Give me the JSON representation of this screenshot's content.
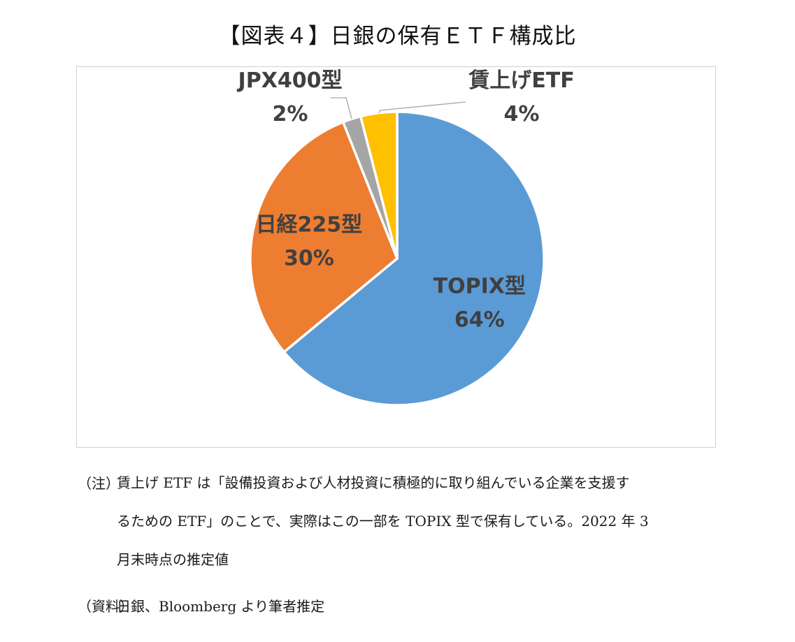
{
  "figure": {
    "title": "【図表４】日銀の保有ＥＴＦ構成比"
  },
  "chart_data": {
    "type": "pie",
    "slices": [
      {
        "name": "TOPIX型",
        "value": 64,
        "label": "64%",
        "color": "#5B9BD5"
      },
      {
        "name": "日経225型",
        "value": 30,
        "label": "30%",
        "color": "#ED7D31"
      },
      {
        "name": "JPX400型",
        "value": 2,
        "label": "2%",
        "color": "#A5A5A5"
      },
      {
        "name": "賃上げETF",
        "value": 4,
        "label": "4%",
        "color": "#FFC000"
      }
    ],
    "start": "12 o'clock",
    "direction": "clockwise",
    "data_labels": "category name and percentage",
    "legend": "none"
  },
  "notes": {
    "note_tag": "（注）",
    "note_lines": [
      "賃上げ ETF は「設備投資および人材投資に積極的に取り組んでいる企業を支援す",
      "るための ETF」のことで、実際はこの一部を TOPIX 型で保有している。2022 年 3",
      "月末時点の推定値"
    ],
    "source_tag": "（資料）",
    "source_text": "日銀、Bloomberg より筆者推定"
  }
}
